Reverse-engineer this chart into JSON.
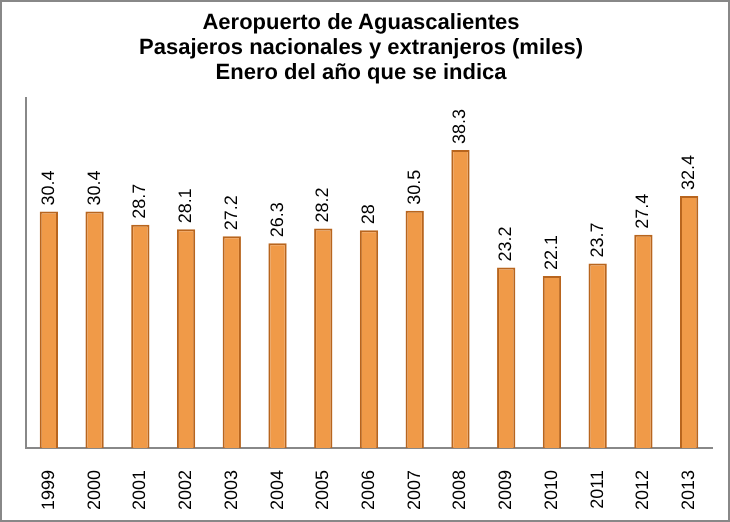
{
  "chart_data": {
    "type": "bar",
    "title": [
      "Aeropuerto de Aguascalientes",
      "Pasajeros nacionales y extranjeros (miles)",
      "Enero del año que se indica"
    ],
    "categories": [
      "1999",
      "2000",
      "2001",
      "2002",
      "2003",
      "2004",
      "2005",
      "2006",
      "2007",
      "2008",
      "2009",
      "2010",
      "2011",
      "2012",
      "2013"
    ],
    "values": [
      30.4,
      30.4,
      28.7,
      28.1,
      27.2,
      26.3,
      28.2,
      28,
      30.5,
      38.3,
      23.2,
      22.1,
      23.7,
      27.4,
      32.4
    ],
    "color": "#f09a48",
    "data_labels": true,
    "grid": false,
    "legend": false
  }
}
